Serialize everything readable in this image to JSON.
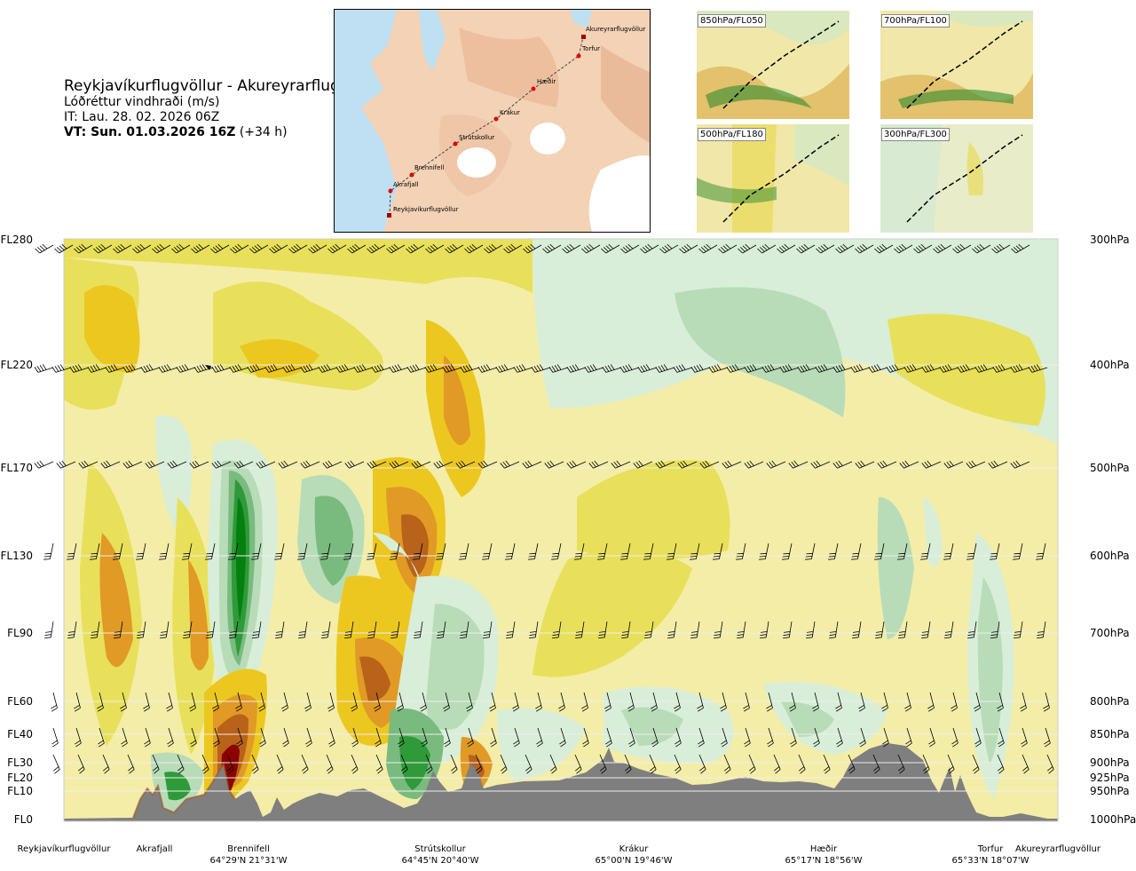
{
  "title": {
    "route": "Reykjavíkurflugvöllur - Akureyrarflugvöllur",
    "parameter": "Lóðréttur vindhraði (m/s)",
    "it": "IT: Lau. 28. 02. 2026 06Z",
    "vt_bold": "VT: Sun. 01.03.2026 16Z",
    "vt_rest": " (+34 h)"
  },
  "insets": [
    {
      "label": "850hPa/FL050"
    },
    {
      "label": "700hPa/FL100"
    },
    {
      "label": "500hPa/FL180"
    },
    {
      "label": "300hPa/FL300"
    }
  ],
  "map": {
    "labels": [
      "Akureyrarflugvöllur",
      "Torfur",
      "Hæðir",
      "Krákur",
      "Strútskollur",
      "Brennifell",
      "Akrafjall",
      "Reykjavíkurflugvöllur"
    ]
  },
  "chart_data": {
    "type": "heatmap",
    "title": "",
    "xlabel": "",
    "ylabel": "",
    "levels": [
      {
        "fl": "FL280",
        "hpa": "300hPa"
      },
      {
        "fl": "FL220",
        "hpa": "400hPa"
      },
      {
        "fl": "FL170",
        "hpa": "500hPa"
      },
      {
        "fl": "FL130",
        "hpa": "600hPa"
      },
      {
        "fl": "FL90",
        "hpa": "700hPa"
      },
      {
        "fl": "FL60",
        "hpa": "800hPa"
      },
      {
        "fl": "FL40",
        "hpa": "850hPa"
      },
      {
        "fl": "FL30",
        "hpa": "900hPa"
      },
      {
        "fl": "FL20",
        "hpa": "925hPa"
      },
      {
        "fl": "FL10",
        "hpa": "950hPa"
      },
      {
        "fl": "FL0",
        "hpa": "1000hPa"
      }
    ],
    "places": [
      {
        "name": "Reykjavíkurflugvöllur",
        "coord": ""
      },
      {
        "name": "Akrafjall",
        "coord": ""
      },
      {
        "name": "Brennifell",
        "coord": "64°29'N 21°31'W"
      },
      {
        "name": "Strútskollur",
        "coord": "64°45'N 20°40'W"
      },
      {
        "name": "Krákur",
        "coord": "65°00'N 19°46'W"
      },
      {
        "name": "Hæðir",
        "coord": "65°17'N 18°56'W"
      },
      {
        "name": "Torfur",
        "coord": "65°33'N 18°07'W"
      },
      {
        "name": "Akureyrarflugvöllur",
        "coord": ""
      }
    ],
    "colors": {
      "strong_down": "#8b0000",
      "down3": "#b8621a",
      "down2": "#e09a25",
      "down1": "#ecc720",
      "down0": "#e8e05a",
      "weak_down": "#f4eda8",
      "neutral": "#fbfbe6",
      "weak_up": "#d8eed8",
      "up1": "#b8dcb8",
      "up2": "#79bb7e",
      "up3": "#2e9a3a",
      "up4": "#05800f",
      "terrain": "#7f7f7f"
    }
  }
}
